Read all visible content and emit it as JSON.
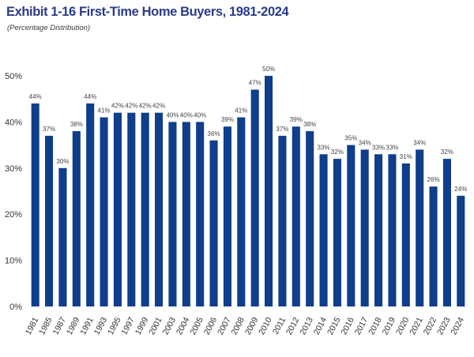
{
  "chart_data": {
    "type": "bar",
    "title": "Exhibit 1-16 First-Time Home Buyers, 1981-2024",
    "subtitle": "(Percentage  Distribution)",
    "xlabel": "",
    "ylabel": "",
    "categories": [
      "1981",
      "1985",
      "1987",
      "1989",
      "1991",
      "1993",
      "1995",
      "1997",
      "1999",
      "2001",
      "2003",
      "2004",
      "2005",
      "2006",
      "2007",
      "2008",
      "2009",
      "2010",
      "2011",
      "2012",
      "2013",
      "2014",
      "2015",
      "2016",
      "2017",
      "2018",
      "2019",
      "2020",
      "2021",
      "2022",
      "2023",
      "2024"
    ],
    "values": [
      44,
      37,
      30,
      38,
      44,
      41,
      42,
      42,
      42,
      42,
      40,
      40,
      40,
      36,
      39,
      41,
      47,
      50,
      37,
      39,
      38,
      33,
      32,
      35,
      34,
      33,
      33,
      31,
      34,
      26,
      32,
      24
    ],
    "data_labels": [
      "44%",
      "37%",
      "30%",
      "38%",
      "44%",
      "41%",
      "42%",
      "42%",
      "42%",
      "42%",
      "40%",
      "40%",
      "40%",
      "36%",
      "39%",
      "41%",
      "47%",
      "50%",
      "37%",
      "39%",
      "38%",
      "33%",
      "32%",
      "35%",
      "34%",
      "33%",
      "33%",
      "31%",
      "34%",
      "26%",
      "32%",
      "24%"
    ],
    "ylim": [
      0,
      50
    ],
    "yticks": [
      0,
      10,
      20,
      30,
      40,
      50
    ],
    "ytick_labels": [
      "0%",
      "10%",
      "20%",
      "30%",
      "40%",
      "50%"
    ],
    "grid": false,
    "legend": "none",
    "bar_color": "#0f3e8a",
    "title_color": "#2b3b8c"
  }
}
